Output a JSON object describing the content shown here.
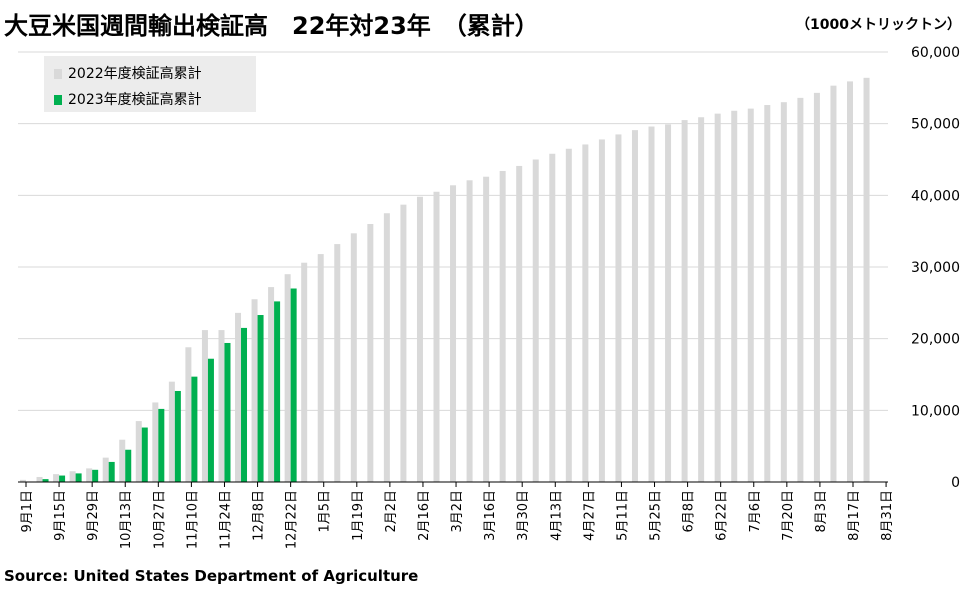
{
  "title": "大豆米国週間輸出検証高　22年対23年　（累計）",
  "unit": "（1000メトリックトン）",
  "source": "Source: United States Department of Agriculture",
  "colors": {
    "series_2022": "#d9d9d9",
    "series_2023": "#00b050",
    "gridline": "#d9d9d9",
    "axis": "#000000"
  },
  "chart_data": {
    "type": "bar",
    "ylim": [
      0,
      60000
    ],
    "yticks": [
      0,
      10000,
      20000,
      30000,
      40000,
      50000,
      60000
    ],
    "ytick_labels": [
      "0",
      "10,000",
      "20,000",
      "30,000",
      "40,000",
      "50,000",
      "60,000"
    ],
    "y_axis_side": "right",
    "grid": true,
    "legend_position": "top-left",
    "categories": [
      "9月1日",
      "9月8日",
      "9月15日",
      "9月22日",
      "9月29日",
      "10月6日",
      "10月13日",
      "10月20日",
      "10月27日",
      "11月3日",
      "11月10日",
      "11月17日",
      "11月24日",
      "12月1日",
      "12月8日",
      "12月15日",
      "12月22日",
      "12月29日",
      "1月5日",
      "1月12日",
      "1月19日",
      "1月26日",
      "2月2日",
      "2月9日",
      "2月16日",
      "2月23日",
      "3月2日",
      "3月9日",
      "3月16日",
      "3月23日",
      "3月30日",
      "4月6日",
      "4月13日",
      "4月20日",
      "4月27日",
      "5月4日",
      "5月11日",
      "5月18日",
      "5月25日",
      "6月1日",
      "6月8日",
      "6月15日",
      "6月22日",
      "6月29日",
      "7月6日",
      "7月13日",
      "7月20日",
      "7月27日",
      "8月3日",
      "8月10日",
      "8月17日",
      "8月24日",
      "8月31日"
    ],
    "tick_labels": [
      "9月1日",
      "9月15日",
      "9月29日",
      "10月13日",
      "10月27日",
      "11月10日",
      "11月24日",
      "12月8日",
      "12月22日",
      "1月5日",
      "1月19日",
      "2月2日",
      "2月16日",
      "3月2日",
      "3月16日",
      "3月30日",
      "4月13日",
      "4月27日",
      "5月11日",
      "5月25日",
      "6月8日",
      "6月22日",
      "7月6日",
      "7月20日",
      "8月3日",
      "8月17日",
      "8月31日"
    ],
    "series": [
      {
        "name": "2022年度検証高累計",
        "values": [
          300,
          700,
          1100,
          1500,
          1900,
          3400,
          5900,
          8500,
          11100,
          14000,
          18800,
          21200,
          21200,
          23600,
          25500,
          27200,
          29000,
          30600,
          31800,
          33200,
          34700,
          36000,
          37500,
          38700,
          39800,
          40500,
          41400,
          42100,
          42600,
          43400,
          44100,
          45000,
          45800,
          46500,
          47100,
          47800,
          48500,
          49100,
          49600,
          49900,
          50500,
          50900,
          51400,
          51800,
          52100,
          52600,
          53000,
          53600,
          54300,
          55300,
          55900,
          56400,
          null
        ]
      },
      {
        "name": "2023年度検証高累計",
        "values": [
          null,
          400,
          900,
          1200,
          1700,
          2800,
          4500,
          7600,
          10200,
          12700,
          14700,
          17200,
          19400,
          21500,
          23300,
          25200,
          27000,
          null,
          null,
          null,
          null,
          null,
          null,
          null,
          null,
          null,
          null,
          null,
          null,
          null,
          null,
          null,
          null,
          null,
          null,
          null,
          null,
          null,
          null,
          null,
          null,
          null,
          null,
          null,
          null,
          null,
          null,
          null,
          null,
          null,
          null,
          null,
          null
        ]
      }
    ]
  }
}
